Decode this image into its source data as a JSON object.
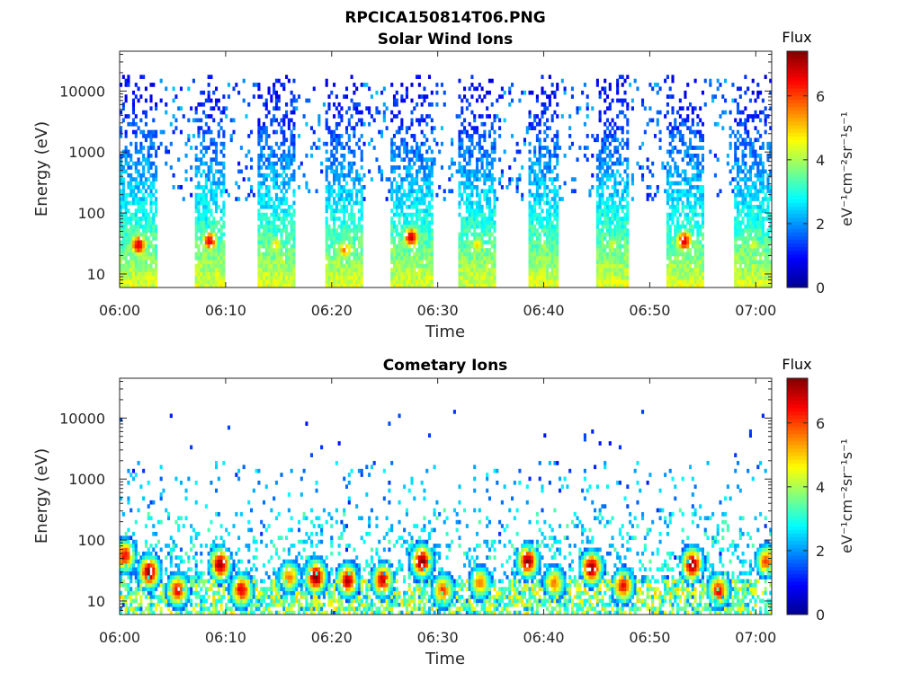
{
  "figure_title": "RPCICA150814T06.PNG",
  "colors": {
    "jet": [
      "#00008f",
      "#0000ff",
      "#0080ff",
      "#00ffff",
      "#80ff80",
      "#ffff00",
      "#ff8000",
      "#ff0000",
      "#800000"
    ]
  },
  "panels": [
    {
      "title": "Solar Wind Ions",
      "xlabel": "Time",
      "ylabel": "Energy (eV)",
      "colorbar": {
        "title": "Flux",
        "label": "eV⁻¹cm⁻²sr⁻¹s⁻¹",
        "ticks": [
          "0",
          "2",
          "4",
          "6"
        ],
        "range": [
          0,
          7.4
        ]
      }
    },
    {
      "title": "Cometary Ions",
      "xlabel": "Time",
      "ylabel": "Energy (eV)",
      "colorbar": {
        "title": "Flux",
        "label": "eV⁻¹cm⁻²sr⁻¹s⁻¹",
        "ticks": [
          "0",
          "2",
          "4",
          "6"
        ],
        "range": [
          0,
          7.4
        ]
      }
    }
  ],
  "chart_data": [
    {
      "type": "heatmap",
      "title": "Solar Wind Ions",
      "xlabel": "Time",
      "ylabel": "Energy (eV)",
      "x_ticks": [
        "06:00",
        "06:10",
        "06:20",
        "06:30",
        "06:40",
        "06:50",
        "07:00"
      ],
      "xlim_minutes": [
        0,
        61.5
      ],
      "y_scale": "log",
      "y_ticks": [
        "10",
        "100",
        "1000",
        "10000"
      ],
      "ylim": [
        6,
        45000
      ],
      "colorbar_range": [
        0,
        7.4
      ],
      "sweeps": [
        {
          "start_min": 0.0,
          "end_min": 3.6,
          "peak_flux": 6.8,
          "peak_energy_eV": 30
        },
        {
          "start_min": 7.0,
          "end_min": 10.0,
          "peak_flux": 6.5,
          "peak_energy_eV": 35
        },
        {
          "start_min": 13.0,
          "end_min": 16.5,
          "peak_flux": 4.8,
          "peak_energy_eV": 30
        },
        {
          "start_min": 19.5,
          "end_min": 23.0,
          "peak_flux": 5.5,
          "peak_energy_eV": 25
        },
        {
          "start_min": 25.5,
          "end_min": 29.5,
          "peak_flux": 6.8,
          "peak_energy_eV": 40
        },
        {
          "start_min": 32.0,
          "end_min": 35.5,
          "peak_flux": 4.8,
          "peak_energy_eV": 30
        },
        {
          "start_min": 38.5,
          "end_min": 41.5,
          "peak_flux": 4.0,
          "peak_energy_eV": 30
        },
        {
          "start_min": 45.0,
          "end_min": 48.0,
          "peak_flux": 4.5,
          "peak_energy_eV": 30
        },
        {
          "start_min": 51.5,
          "end_min": 55.0,
          "peak_flux": 6.8,
          "peak_energy_eV": 35
        },
        {
          "start_min": 58.0,
          "end_min": 61.5,
          "peak_flux": 4.5,
          "peak_energy_eV": 30
        }
      ]
    },
    {
      "type": "heatmap",
      "title": "Cometary Ions",
      "xlabel": "Time",
      "ylabel": "Energy (eV)",
      "x_ticks": [
        "06:00",
        "06:10",
        "06:20",
        "06:30",
        "06:40",
        "06:50",
        "07:00"
      ],
      "xlim_minutes": [
        0,
        61.5
      ],
      "y_scale": "log",
      "y_ticks": [
        "10",
        "100",
        "1000",
        "10000"
      ],
      "ylim": [
        6,
        45000
      ],
      "colorbar_range": [
        0,
        7.4
      ],
      "hot_spots": [
        {
          "time_min": 0.5,
          "energy_eV": 55,
          "flux": 6.5
        },
        {
          "time_min": 2.8,
          "energy_eV": 30,
          "flux": 7.3
        },
        {
          "time_min": 5.5,
          "energy_eV": 15,
          "flux": 6.5
        },
        {
          "time_min": 9.5,
          "energy_eV": 40,
          "flux": 7.3
        },
        {
          "time_min": 11.5,
          "energy_eV": 15,
          "flux": 6.8
        },
        {
          "time_min": 16.0,
          "energy_eV": 25,
          "flux": 5.5
        },
        {
          "time_min": 18.5,
          "energy_eV": 25,
          "flux": 7.4
        },
        {
          "time_min": 21.5,
          "energy_eV": 22,
          "flux": 7.0
        },
        {
          "time_min": 24.8,
          "energy_eV": 22,
          "flux": 6.8
        },
        {
          "time_min": 28.5,
          "energy_eV": 45,
          "flux": 7.4
        },
        {
          "time_min": 30.5,
          "energy_eV": 15,
          "flux": 6.0
        },
        {
          "time_min": 34.0,
          "energy_eV": 20,
          "flux": 5.5
        },
        {
          "time_min": 38.5,
          "energy_eV": 45,
          "flux": 7.2
        },
        {
          "time_min": 41.0,
          "energy_eV": 20,
          "flux": 5.5
        },
        {
          "time_min": 44.5,
          "energy_eV": 35,
          "flux": 7.4
        },
        {
          "time_min": 47.5,
          "energy_eV": 18,
          "flux": 6.5
        },
        {
          "time_min": 54.0,
          "energy_eV": 40,
          "flux": 7.4
        },
        {
          "time_min": 56.5,
          "energy_eV": 15,
          "flux": 6.5
        },
        {
          "time_min": 61.0,
          "energy_eV": 45,
          "flux": 6.0
        }
      ]
    }
  ]
}
